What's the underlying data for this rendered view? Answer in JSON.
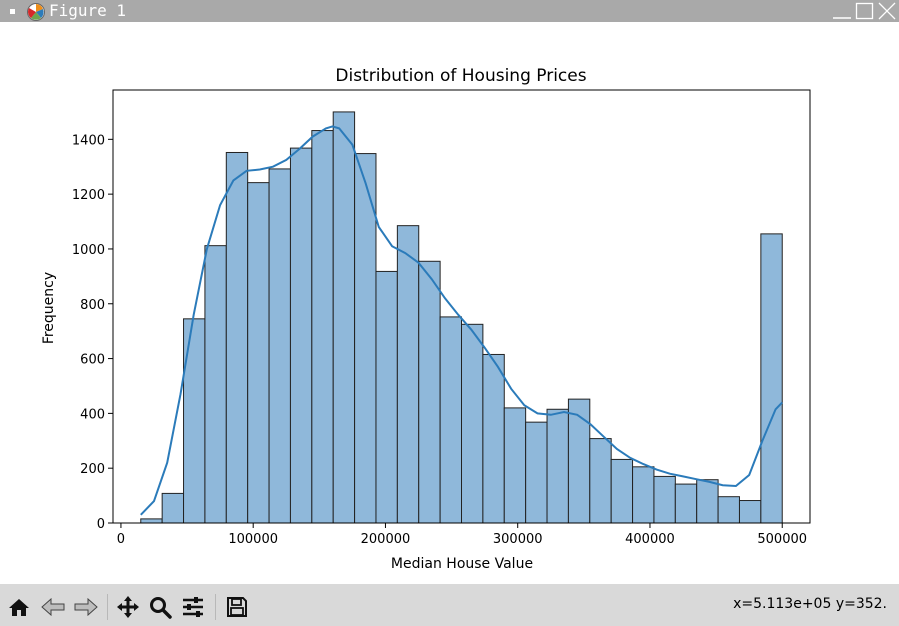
{
  "window": {
    "title": "Figure 1"
  },
  "toolbar": {
    "coords": "x=5.113e+05 y=352."
  },
  "icons": [
    "home-icon",
    "back-icon",
    "forward-icon",
    "pan-icon",
    "zoom-icon",
    "configure-subplots-icon",
    "save-icon",
    "matplotlib-logo-icon",
    "minimize-icon",
    "maximize-icon",
    "close-icon"
  ],
  "colors": {
    "bar_fill": "#8fb8da",
    "bar_edge": "#222222",
    "kde_line": "#2b7bba",
    "titlebar": "#a9a9a9",
    "toolbar": "#d9d9d9"
  },
  "chart_data": {
    "type": "bar",
    "title": "Distribution of Housing Prices",
    "xlabel": "Median House Value",
    "ylabel": "Frequency",
    "xlim": [
      -6000,
      521000
    ],
    "ylim": [
      0,
      1580
    ],
    "xticks": [
      0,
      100000,
      200000,
      300000,
      400000,
      500000
    ],
    "xtick_labels": [
      "0",
      "100000",
      "200000",
      "300000",
      "400000",
      "500000"
    ],
    "yticks": [
      0,
      200,
      400,
      600,
      800,
      1000,
      1200,
      1400
    ],
    "ytick_labels": [
      "0",
      "200",
      "400",
      "600",
      "800",
      "1000",
      "1200",
      "1400"
    ],
    "bin_start": 14999,
    "bin_width": 16167,
    "bin_counts": [
      15,
      108,
      745,
      1012,
      1352,
      1242,
      1292,
      1368,
      1432,
      1500,
      1348,
      918,
      1085,
      955,
      752,
      725,
      615,
      420,
      368,
      415,
      452,
      308,
      232,
      205,
      170,
      142,
      158,
      96,
      82,
      1055
    ],
    "kde": {
      "x": [
        15000,
        25000,
        35000,
        45000,
        55000,
        65000,
        75000,
        85000,
        95000,
        105000,
        115000,
        125000,
        135000,
        145000,
        155000,
        160000,
        165000,
        175000,
        185000,
        195000,
        205000,
        215000,
        225000,
        235000,
        245000,
        255000,
        265000,
        275000,
        285000,
        295000,
        305000,
        315000,
        325000,
        335000,
        345000,
        355000,
        365000,
        375000,
        385000,
        395000,
        405000,
        415000,
        425000,
        435000,
        445000,
        455000,
        465000,
        475000,
        485000,
        495000,
        500000
      ],
      "y": [
        30,
        80,
        220,
        470,
        760,
        1000,
        1160,
        1250,
        1285,
        1290,
        1300,
        1325,
        1365,
        1410,
        1440,
        1447,
        1440,
        1380,
        1240,
        1080,
        1010,
        985,
        950,
        890,
        820,
        760,
        705,
        640,
        570,
        490,
        430,
        400,
        395,
        405,
        395,
        360,
        315,
        270,
        238,
        215,
        195,
        180,
        170,
        160,
        150,
        138,
        135,
        175,
        300,
        415,
        440
      ]
    }
  }
}
